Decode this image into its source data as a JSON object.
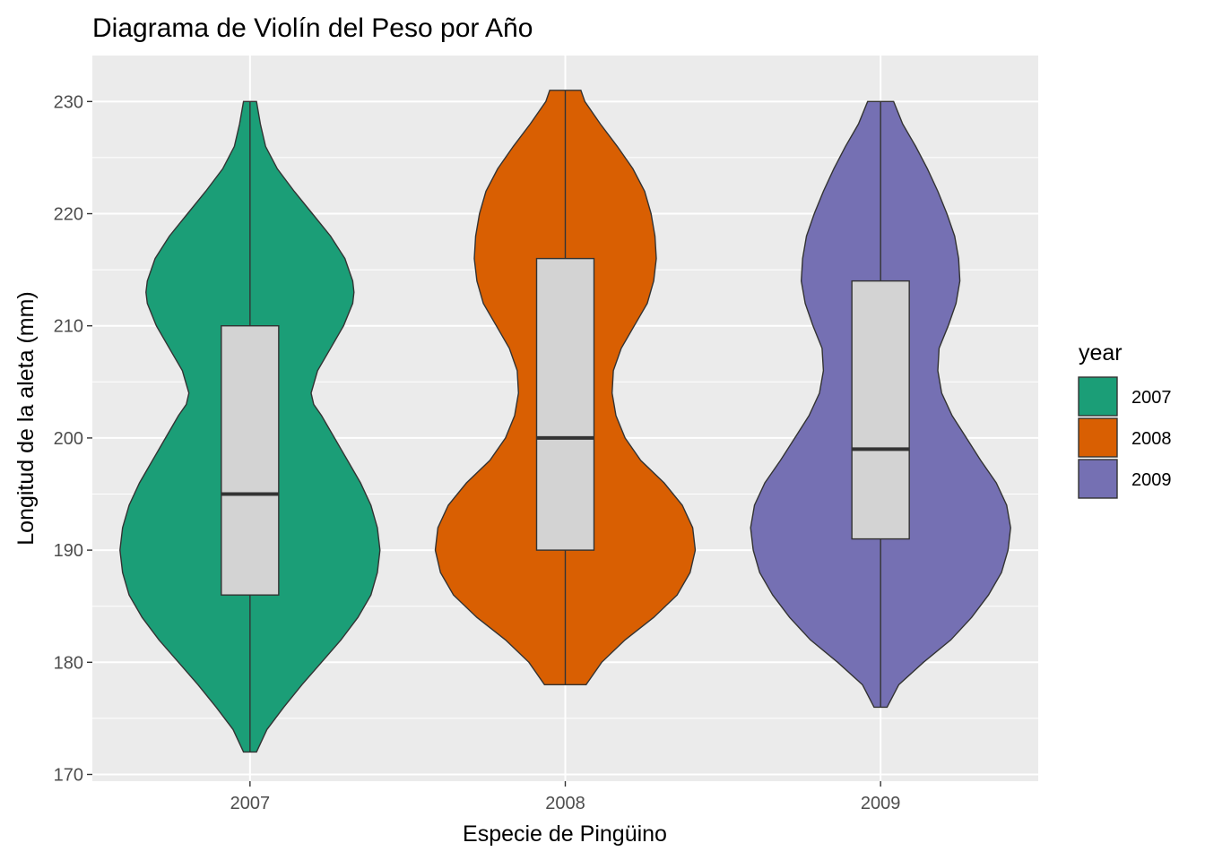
{
  "chart_data": {
    "type": "violin",
    "title": "Diagrama de Violín del Peso por Año",
    "xlabel": "Especie de Pingüino",
    "ylabel": "Longitud de la aleta (mm)",
    "categories": [
      "2007",
      "2008",
      "2009"
    ],
    "ylim": [
      169.4,
      234.1
    ],
    "y_ticks": [
      170,
      180,
      190,
      200,
      210,
      220,
      230
    ],
    "grid": true,
    "legend": {
      "title": "year",
      "position": "right",
      "entries": [
        "2007",
        "2008",
        "2009"
      ]
    },
    "series": [
      {
        "category": "2007",
        "color": "#1B9E77",
        "min": 172,
        "q1": 186,
        "median": 195,
        "q3": 210,
        "max": 230,
        "density": [
          [
            172,
            0.05
          ],
          [
            174,
            0.13
          ],
          [
            176,
            0.26
          ],
          [
            178,
            0.4
          ],
          [
            180,
            0.55
          ],
          [
            182,
            0.7
          ],
          [
            184,
            0.83
          ],
          [
            186,
            0.93
          ],
          [
            188,
            0.98
          ],
          [
            190,
            1.0
          ],
          [
            192,
            0.98
          ],
          [
            194,
            0.93
          ],
          [
            196,
            0.85
          ],
          [
            198,
            0.75
          ],
          [
            200,
            0.65
          ],
          [
            202,
            0.55
          ],
          [
            203,
            0.49
          ],
          [
            204,
            0.47
          ],
          [
            206,
            0.52
          ],
          [
            208,
            0.62
          ],
          [
            210,
            0.72
          ],
          [
            212,
            0.79
          ],
          [
            213,
            0.8
          ],
          [
            214,
            0.79
          ],
          [
            216,
            0.73
          ],
          [
            218,
            0.62
          ],
          [
            220,
            0.48
          ],
          [
            222,
            0.34
          ],
          [
            224,
            0.21
          ],
          [
            226,
            0.12
          ],
          [
            228,
            0.08
          ],
          [
            230,
            0.05
          ]
        ]
      },
      {
        "category": "2008",
        "color": "#D95F02",
        "min": 178,
        "q1": 190,
        "median": 200,
        "q3": 216,
        "max": 231,
        "density": [
          [
            178,
            0.16
          ],
          [
            180,
            0.28
          ],
          [
            182,
            0.46
          ],
          [
            184,
            0.68
          ],
          [
            186,
            0.86
          ],
          [
            188,
            0.96
          ],
          [
            190,
            1.0
          ],
          [
            192,
            0.98
          ],
          [
            194,
            0.9
          ],
          [
            196,
            0.76
          ],
          [
            198,
            0.58
          ],
          [
            200,
            0.46
          ],
          [
            202,
            0.39
          ],
          [
            204,
            0.36
          ],
          [
            206,
            0.37
          ],
          [
            208,
            0.43
          ],
          [
            210,
            0.53
          ],
          [
            212,
            0.63
          ],
          [
            214,
            0.68
          ],
          [
            216,
            0.7
          ],
          [
            218,
            0.69
          ],
          [
            220,
            0.66
          ],
          [
            222,
            0.61
          ],
          [
            224,
            0.52
          ],
          [
            226,
            0.4
          ],
          [
            228,
            0.27
          ],
          [
            230,
            0.15
          ],
          [
            231,
            0.12
          ]
        ]
      },
      {
        "category": "2009",
        "color": "#7570B3",
        "min": 176,
        "q1": 191,
        "median": 199,
        "q3": 214,
        "max": 230,
        "density": [
          [
            176,
            0.05
          ],
          [
            178,
            0.14
          ],
          [
            180,
            0.33
          ],
          [
            182,
            0.54
          ],
          [
            184,
            0.7
          ],
          [
            186,
            0.83
          ],
          [
            188,
            0.93
          ],
          [
            190,
            0.98
          ],
          [
            192,
            1.0
          ],
          [
            194,
            0.97
          ],
          [
            196,
            0.89
          ],
          [
            198,
            0.77
          ],
          [
            200,
            0.66
          ],
          [
            202,
            0.55
          ],
          [
            204,
            0.47
          ],
          [
            206,
            0.44
          ],
          [
            208,
            0.45
          ],
          [
            210,
            0.52
          ],
          [
            212,
            0.58
          ],
          [
            214,
            0.61
          ],
          [
            216,
            0.6
          ],
          [
            218,
            0.57
          ],
          [
            220,
            0.51
          ],
          [
            222,
            0.44
          ],
          [
            224,
            0.36
          ],
          [
            226,
            0.27
          ],
          [
            228,
            0.17
          ],
          [
            230,
            0.1
          ]
        ]
      }
    ]
  }
}
